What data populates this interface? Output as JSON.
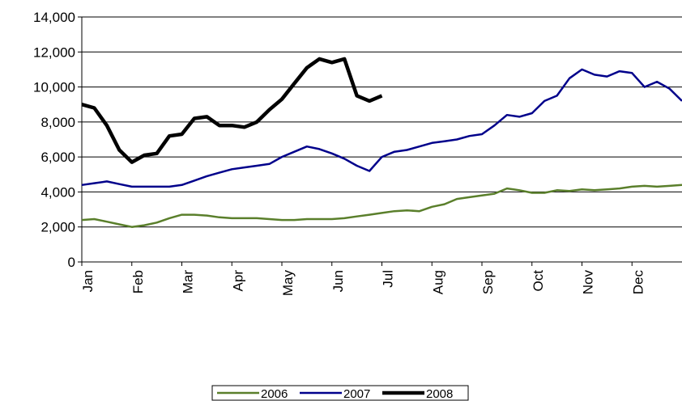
{
  "chart_data": {
    "type": "line",
    "x": [
      0,
      0.25,
      0.5,
      0.75,
      1,
      1.25,
      1.5,
      1.75,
      2,
      2.25,
      2.5,
      2.75,
      3,
      3.25,
      3.5,
      3.75,
      4,
      4.25,
      4.5,
      4.75,
      5,
      5.25,
      5.5,
      5.75,
      6,
      6.25,
      6.5,
      6.75,
      7,
      7.25,
      7.5,
      7.75,
      8,
      8.25,
      8.5,
      8.75,
      9,
      9.25,
      9.5,
      9.75,
      10,
      10.25,
      10.5,
      10.75,
      11,
      11.25,
      11.5,
      11.75,
      12
    ],
    "series": [
      {
        "name": "2006",
        "color": "#5a7f2b",
        "width": 2.5,
        "values": [
          2400,
          2450,
          2300,
          2150,
          2000,
          2100,
          2250,
          2500,
          2700,
          2700,
          2650,
          2550,
          2500,
          2500,
          2500,
          2450,
          2400,
          2400,
          2450,
          2450,
          2450,
          2500,
          2600,
          2700,
          2800,
          2900,
          2950,
          2900,
          3150,
          3300,
          3600,
          3700,
          3800,
          3900,
          4200,
          4100,
          3950,
          3950,
          4100,
          4050,
          4150,
          4100,
          4150,
          4200,
          4300,
          4350,
          4300,
          4350,
          4400
        ]
      },
      {
        "name": "2007",
        "color": "#00008b",
        "width": 2.5,
        "values": [
          4400,
          4500,
          4600,
          4450,
          4300,
          4300,
          4300,
          4300,
          4400,
          4650,
          4900,
          5100,
          5300,
          5400,
          5500,
          5600,
          6000,
          6300,
          6600,
          6450,
          6200,
          5900,
          5500,
          5200,
          6000,
          6300,
          6400,
          6600,
          6800,
          6900,
          7000,
          7200,
          7300,
          7800,
          8400,
          8300,
          8500,
          9200,
          9500,
          10500,
          11000,
          10700,
          10600,
          10900,
          10800,
          10000,
          10300,
          9900,
          9200
        ]
      },
      {
        "name": "2008",
        "color": "#000000",
        "width": 4.5,
        "values": [
          9000,
          8800,
          7800,
          6400,
          5700,
          6100,
          6200,
          7200,
          7300,
          8200,
          8300,
          7800,
          7800,
          7700,
          8000,
          8700,
          9300,
          10200,
          11100,
          11600,
          11400,
          11600,
          9500,
          9200,
          9500,
          null,
          null,
          null,
          null,
          null,
          null,
          null,
          null,
          null,
          null,
          null,
          null,
          null,
          null,
          null,
          null,
          null,
          null,
          null,
          null,
          null,
          null,
          null,
          null
        ]
      }
    ],
    "xlim": [
      0,
      12
    ],
    "xticks": [
      {
        "value": 0,
        "label": "Jan"
      },
      {
        "value": 1,
        "label": "Feb"
      },
      {
        "value": 2,
        "label": "Mar"
      },
      {
        "value": 3,
        "label": "Apr"
      },
      {
        "value": 4,
        "label": "May"
      },
      {
        "value": 5,
        "label": "Jun"
      },
      {
        "value": 6,
        "label": "Jul"
      },
      {
        "value": 7,
        "label": "Aug"
      },
      {
        "value": 8,
        "label": "Sep"
      },
      {
        "value": 9,
        "label": "Oct"
      },
      {
        "value": 10,
        "label": "Nov"
      },
      {
        "value": 11,
        "label": "Dec"
      }
    ],
    "ylim": [
      0,
      14000
    ],
    "yticks": [
      0,
      {
        "value": 2000,
        "label": "2,000"
      },
      {
        "value": 4000,
        "label": "4,000"
      },
      {
        "value": 6000,
        "label": "6,000"
      },
      {
        "value": 8000,
        "label": "8,000"
      },
      {
        "value": 10000,
        "label": "10,000"
      },
      {
        "value": 12000,
        "label": "12,000"
      },
      {
        "value": 14000,
        "label": "14,000"
      }
    ],
    "grid": true,
    "legend": "bottom"
  }
}
